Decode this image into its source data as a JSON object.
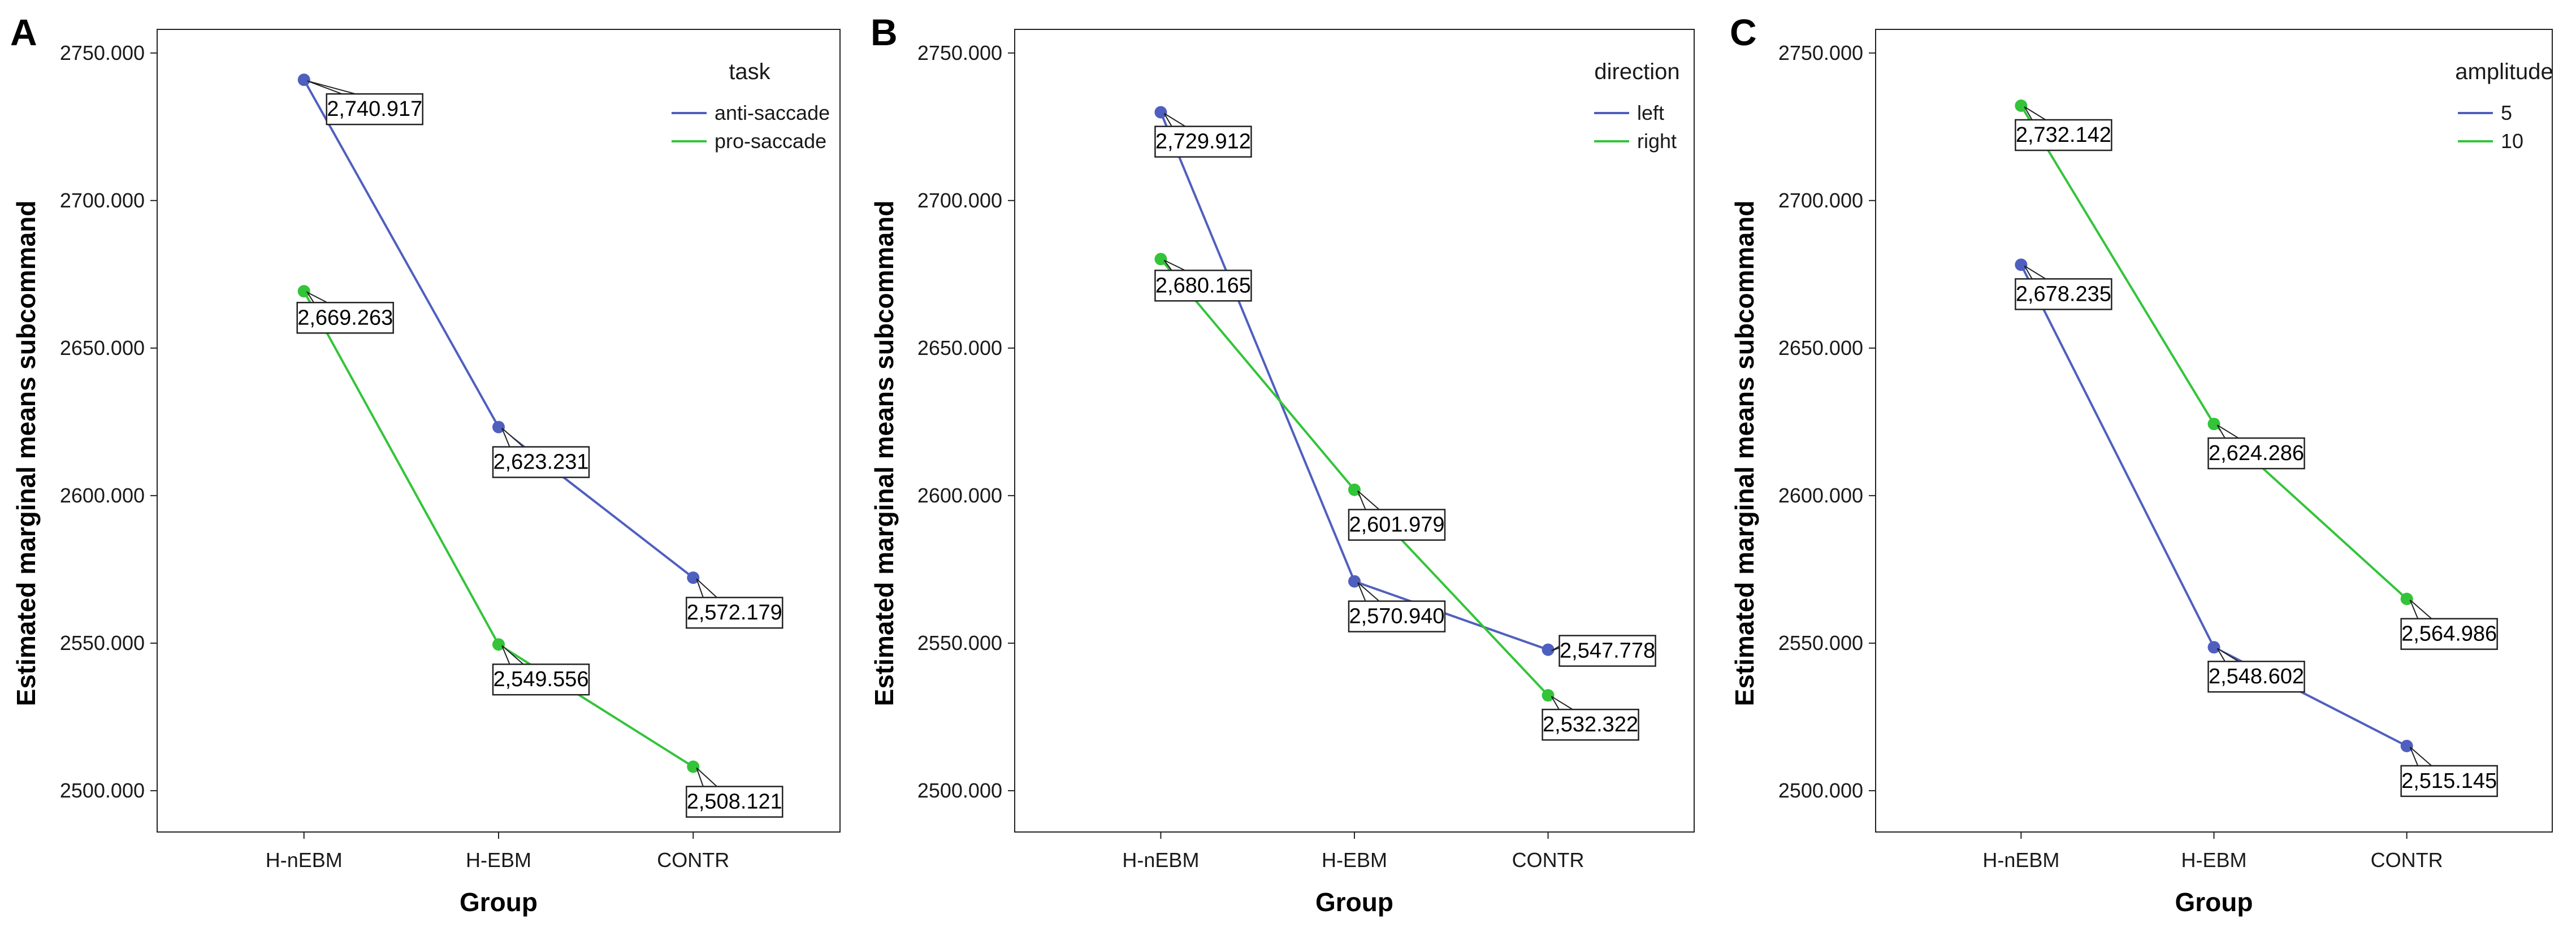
{
  "chart_data": [
    {
      "panel": "A",
      "type": "line",
      "xlabel": "Group",
      "ylabel": "Estimated marginal means subcommand",
      "categories": [
        "H-nEBM",
        "H-EBM",
        "CONTR"
      ],
      "yticks": [
        "2500.000",
        "2550.000",
        "2600.000",
        "2650.000",
        "2700.000",
        "2750.000"
      ],
      "ylim": [
        2486,
        2758
      ],
      "legend_title": "task",
      "legend_position": "top-right",
      "series": [
        {
          "name": "anti-saccade",
          "color": "#4f5fbf",
          "values": [
            2740.917,
            2623.231,
            2572.179
          ],
          "labels": [
            "2,740.917",
            "2,623.231",
            "2,572.179"
          ]
        },
        {
          "name": "pro-saccade",
          "color": "#33c43a",
          "values": [
            2669.263,
            2549.556,
            2508.121
          ],
          "labels": [
            "2,669.263",
            "2,549.556",
            "2,508.121"
          ]
        }
      ]
    },
    {
      "panel": "B",
      "type": "line",
      "xlabel": "Group",
      "ylabel": "Estimated marginal means subcommand",
      "categories": [
        "H-nEBM",
        "H-EBM",
        "CONTR"
      ],
      "yticks": [
        "2500.000",
        "2550.000",
        "2600.000",
        "2650.000",
        "2700.000",
        "2750.000"
      ],
      "ylim": [
        2486,
        2758
      ],
      "legend_title": "direction",
      "legend_position": "top-right",
      "series": [
        {
          "name": "left",
          "color": "#4f5fbf",
          "values": [
            2729.912,
            2570.94,
            2547.778
          ],
          "labels": [
            "2,729.912",
            "2,570.940",
            "2,547.778"
          ]
        },
        {
          "name": "right",
          "color": "#33c43a",
          "values": [
            2680.165,
            2601.979,
            2532.322
          ],
          "labels": [
            "2,680.165",
            "2,601.979",
            "2,532.322"
          ]
        }
      ]
    },
    {
      "panel": "C",
      "type": "line",
      "xlabel": "Group",
      "ylabel": "Estimated marginal means subcommand",
      "categories": [
        "H-nEBM",
        "H-EBM",
        "CONTR"
      ],
      "yticks": [
        "2500.000",
        "2550.000",
        "2600.000",
        "2650.000",
        "2700.000",
        "2750.000"
      ],
      "ylim": [
        2486,
        2758
      ],
      "legend_title": "amplitude",
      "legend_position": "top-right",
      "series": [
        {
          "name": "5",
          "color": "#4f5fbf",
          "values": [
            2678.235,
            2548.602,
            2515.145
          ],
          "labels": [
            "2,678.235",
            "2,548.602",
            "2,515.145"
          ]
        },
        {
          "name": "10",
          "color": "#33c43a",
          "values": [
            2732.142,
            2624.286,
            2564.986
          ],
          "labels": [
            "2,732.142",
            "2,624.286",
            "2,564.986"
          ]
        }
      ]
    }
  ]
}
